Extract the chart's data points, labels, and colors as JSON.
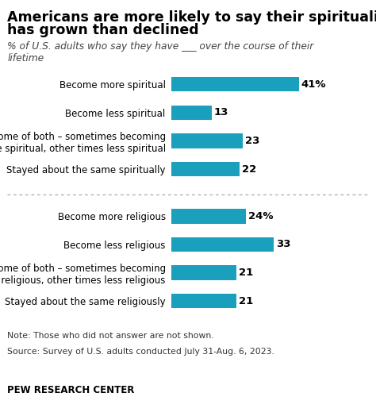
{
  "title_line1": "Americans are more likely to say their spirituality",
  "title_line2": "has grown than declined",
  "subtitle": "% of U.S. adults who say they have ___ over the course of their\nlifetime",
  "background_color": "#ffffff",
  "bar_color": "#1a9fbc",
  "section1_labels": [
    "Become more spiritual",
    "Become less spiritual",
    "Some of both – sometimes becoming\nmore spiritual, other times less spiritual",
    "Stayed about the same spiritually"
  ],
  "section1_values": [
    41,
    13,
    23,
    22
  ],
  "section1_pct": [
    "41%",
    "13",
    "23",
    "22"
  ],
  "section2_labels": [
    "Become more religious",
    "Become less religious",
    "Some of both – sometimes becoming\nmore religious, other times less religious",
    "Stayed about the same religiously"
  ],
  "section2_values": [
    24,
    33,
    21,
    21
  ],
  "section2_pct": [
    "24%",
    "33",
    "21",
    "21"
  ],
  "note_line1": "Note: Those who did not answer are not shown.",
  "note_line2": "Source: Survey of U.S. adults conducted July 31-Aug. 6, 2023.",
  "footer": "PEW RESEARCH CENTER",
  "xlim": [
    0,
    50
  ],
  "bar_height": 0.52,
  "label_fontsize": 8.5,
  "value_fontsize": 9.5,
  "note_fontsize": 7.8,
  "footer_fontsize": 8.5
}
